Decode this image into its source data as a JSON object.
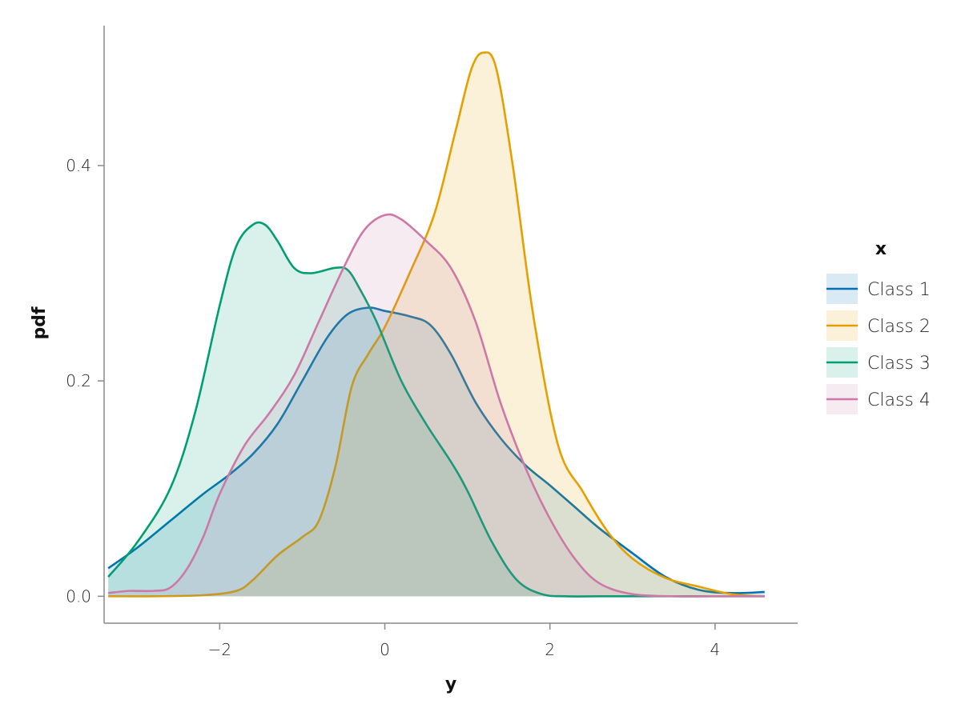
{
  "chart_data": {
    "type": "area",
    "xlabel": "y",
    "ylabel": "pdf",
    "xlim": [
      -3.4,
      5.0
    ],
    "ylim": [
      -0.025,
      0.53
    ],
    "x_ticks": [
      -2,
      0,
      2,
      4
    ],
    "x_tick_labels": [
      "−2",
      "0",
      "2",
      "4"
    ],
    "y_ticks": [
      0.0,
      0.2,
      0.4
    ],
    "y_tick_labels": [
      "0.0",
      "0.2",
      "0.4"
    ],
    "grid": false,
    "legend": {
      "title": "x",
      "placement": "right"
    },
    "series": [
      {
        "name": "Class 1",
        "color": "#0072B2",
        "x": [
          -3.35,
          -3.0,
          -2.6,
          -2.2,
          -1.9,
          -1.6,
          -1.3,
          -1.0,
          -0.7,
          -0.45,
          -0.2,
          0.0,
          0.3,
          0.55,
          0.8,
          1.1,
          1.4,
          1.7,
          2.0,
          2.3,
          2.6,
          3.0,
          3.4,
          3.8,
          4.2,
          4.6
        ],
        "y": [
          0.026,
          0.045,
          0.07,
          0.095,
          0.112,
          0.132,
          0.16,
          0.2,
          0.24,
          0.262,
          0.268,
          0.265,
          0.26,
          0.252,
          0.225,
          0.18,
          0.147,
          0.122,
          0.103,
          0.083,
          0.063,
          0.04,
          0.018,
          0.006,
          0.003,
          0.004
        ]
      },
      {
        "name": "Class 2",
        "color": "#E69F00",
        "x": [
          -3.35,
          -2.8,
          -2.2,
          -1.8,
          -1.6,
          -1.3,
          -1.0,
          -0.8,
          -0.6,
          -0.4,
          -0.2,
          0.0,
          0.3,
          0.6,
          0.85,
          1.05,
          1.2,
          1.35,
          1.55,
          1.8,
          2.1,
          2.4,
          2.7,
          3.0,
          3.4,
          3.8,
          4.2,
          4.6
        ],
        "y": [
          0.0,
          0.0,
          0.001,
          0.005,
          0.015,
          0.038,
          0.055,
          0.07,
          0.12,
          0.195,
          0.225,
          0.25,
          0.3,
          0.355,
          0.43,
          0.49,
          0.505,
          0.49,
          0.4,
          0.26,
          0.14,
          0.097,
          0.06,
          0.035,
          0.017,
          0.009,
          0.002,
          0.0
        ]
      },
      {
        "name": "Class 3",
        "color": "#009E73",
        "x": [
          -3.35,
          -3.0,
          -2.6,
          -2.3,
          -2.0,
          -1.8,
          -1.6,
          -1.45,
          -1.3,
          -1.1,
          -0.9,
          -0.6,
          -0.45,
          -0.3,
          -0.1,
          0.2,
          0.5,
          0.8,
          1.0,
          1.3,
          1.6,
          1.9,
          2.2,
          2.6,
          3.0,
          3.5,
          4.0,
          4.6
        ],
        "y": [
          0.018,
          0.05,
          0.1,
          0.17,
          0.27,
          0.325,
          0.345,
          0.345,
          0.33,
          0.305,
          0.3,
          0.305,
          0.303,
          0.285,
          0.255,
          0.2,
          0.16,
          0.125,
          0.098,
          0.05,
          0.015,
          0.002,
          0.0,
          0.0,
          0.0,
          0.0,
          0.0,
          0.0
        ]
      },
      {
        "name": "Class 4",
        "color": "#CC79A7",
        "x": [
          -3.35,
          -3.1,
          -2.8,
          -2.6,
          -2.4,
          -2.2,
          -2.0,
          -1.7,
          -1.4,
          -1.1,
          -0.8,
          -0.5,
          -0.25,
          0.0,
          0.2,
          0.5,
          0.8,
          1.1,
          1.4,
          1.7,
          2.0,
          2.3,
          2.6,
          3.0,
          3.5,
          4.0,
          4.6
        ],
        "y": [
          0.003,
          0.005,
          0.005,
          0.008,
          0.025,
          0.055,
          0.095,
          0.14,
          0.17,
          0.205,
          0.255,
          0.305,
          0.34,
          0.354,
          0.35,
          0.33,
          0.305,
          0.255,
          0.18,
          0.12,
          0.072,
          0.035,
          0.012,
          0.002,
          0.0,
          0.0,
          0.0
        ]
      }
    ]
  }
}
